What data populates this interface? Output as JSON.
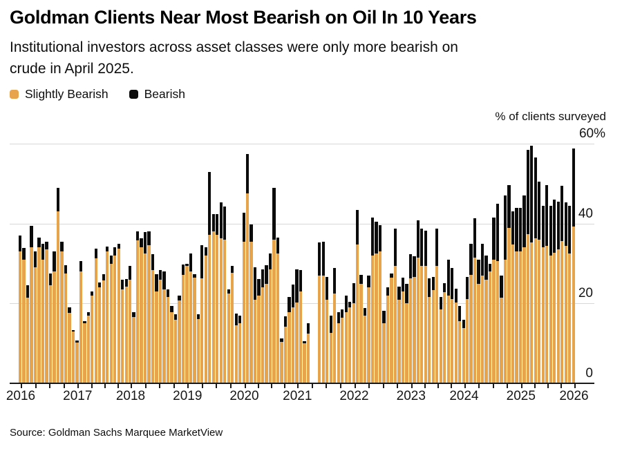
{
  "header": {
    "title": "Goldman Clients Near Most Bearish on Oil In 10 Years",
    "subtitle_line1": "Institutional investors across asset classes were only more bearish on",
    "subtitle_line2": "crude in April 2025."
  },
  "legend": {
    "items": [
      {
        "label": "Slightly Bearish",
        "color": "#E8A44A"
      },
      {
        "label": "Bearish",
        "color": "#0B0B0B"
      }
    ]
  },
  "footer": {
    "source": "Source: Goldman Sachs Marquee MarketView"
  },
  "chart_data": {
    "type": "bar",
    "stacked": true,
    "title": "Goldman Clients Near Most Bearish on Oil In 10 Years",
    "ylabel": "% of clients surveyed",
    "ylim": [
      0,
      64
    ],
    "gridlines": [
      20,
      40,
      60
    ],
    "y_ticks": [
      {
        "value": 60,
        "label": "60%"
      },
      {
        "value": 40,
        "label": "40"
      },
      {
        "value": 20,
        "label": "20"
      },
      {
        "value": 0,
        "label": "0"
      }
    ],
    "legend_position": "top-left",
    "x_years": [
      2016,
      2017,
      2018,
      2019,
      2020,
      2021,
      2022,
      2023,
      2024,
      2025,
      2026
    ],
    "year_start_index": {
      "2016": 0,
      "2017": 15,
      "2018": 29,
      "2019": 44,
      "2020": 59,
      "2021": 73,
      "2022": 88,
      "2023": 103,
      "2024": 117,
      "2025": 132,
      "2026": 146
    },
    "series_names": [
      "Slightly Bearish",
      "Bearish"
    ],
    "bars_note": "each bar = [slightly_bearish_pct, bearish_pct]; null = no survey (gap mid-2021)",
    "bars": [
      [
        33,
        4
      ],
      [
        31,
        3
      ],
      [
        21.5,
        3
      ],
      [
        34,
        5.5
      ],
      [
        29,
        4
      ],
      [
        34,
        2.5
      ],
      [
        31,
        4
      ],
      [
        33.5,
        2
      ],
      [
        24.5,
        3
      ],
      [
        28,
        5
      ],
      [
        43,
        6
      ],
      [
        33,
        2.5
      ],
      [
        27.5,
        2
      ],
      [
        17.6,
        1.4
      ],
      [
        12.9,
        0.5
      ],
      [
        10.2,
        0.6
      ],
      [
        28,
        2.6
      ],
      [
        15,
        0.6
      ],
      [
        17,
        0.9
      ],
      [
        22,
        1
      ],
      [
        31.4,
        2.3
      ],
      [
        24,
        1.3
      ],
      [
        25.7,
        1.7
      ],
      [
        33,
        1.2
      ],
      [
        30,
        2
      ],
      [
        32,
        2
      ],
      [
        33.7,
        1.2
      ],
      [
        23.6,
        2.3
      ],
      [
        24.2,
        2
      ],
      [
        25.9,
        3.5
      ],
      [
        16.7,
        1.2
      ],
      [
        35.8,
        2.3
      ],
      [
        34,
        2.3
      ],
      [
        32.6,
        5.2
      ],
      [
        34.6,
        3.5
      ],
      [
        28.3,
        4
      ],
      [
        23.1,
        4.3
      ],
      [
        25.9,
        2.4
      ],
      [
        23.6,
        4.4
      ],
      [
        21.6,
        2
      ],
      [
        17.9,
        1.4
      ],
      [
        15.9,
        1.4
      ],
      [
        20.8,
        1.1
      ],
      [
        27.1,
        2.6
      ],
      [
        29.4,
        0.6
      ],
      [
        28,
        4.6
      ],
      [
        26.5,
        0.9
      ],
      [
        16.1,
        1.2
      ],
      [
        26.3,
        8.3
      ],
      [
        32,
        2
      ],
      [
        37.2,
        15.7
      ],
      [
        38,
        4.3
      ],
      [
        37.2,
        5.2
      ],
      [
        36.3,
        9
      ],
      [
        36,
        8.3
      ],
      [
        22.5,
        1
      ],
      [
        27.7,
        1.7
      ],
      [
        14.5,
        3
      ],
      [
        15,
        2
      ],
      [
        35.5,
        7.2
      ],
      [
        47.5,
        10
      ],
      [
        35.5,
        4.3
      ],
      [
        21,
        8
      ],
      [
        22,
        4.2
      ],
      [
        24,
        4.5
      ],
      [
        25,
        4.6
      ],
      [
        28.5,
        4
      ],
      [
        36,
        13
      ],
      [
        32.5,
        4
      ],
      [
        10.4,
        0.8
      ],
      [
        14.2,
        2.6
      ],
      [
        17.9,
        3.7
      ],
      [
        19,
        5.8
      ],
      [
        20.2,
        8.3
      ],
      [
        23,
        5.4
      ],
      [
        10.1,
        0.5
      ],
      [
        12.4,
        2.6
      ],
      null,
      null,
      [
        27,
        8.3
      ],
      [
        27,
        8.4
      ],
      [
        21,
        5.6
      ],
      [
        12.7,
        4.3
      ],
      [
        22.5,
        6.4
      ],
      [
        15,
        2.9
      ],
      [
        16.5,
        2
      ],
      [
        17.8,
        4.2
      ],
      [
        19,
        1.5
      ],
      [
        20,
        5.1
      ],
      [
        34.7,
        8.7
      ],
      [
        25,
        2.2
      ],
      [
        17,
        1.8
      ],
      [
        24,
        3
      ],
      [
        32,
        9.6
      ],
      [
        32.5,
        8
      ],
      [
        33,
        6.6
      ],
      [
        15,
        3.2
      ],
      [
        22,
        2
      ],
      [
        26.5,
        1
      ],
      [
        29.5,
        9.2
      ],
      [
        21,
        3.3
      ],
      [
        23,
        3.4
      ],
      [
        20,
        5
      ],
      [
        26.3,
        6.1
      ],
      [
        26.6,
        5.2
      ],
      [
        31.5,
        9.3
      ],
      [
        29.5,
        9.2
      ],
      [
        29.5,
        8.7
      ],
      [
        21.7,
        4.6
      ],
      [
        23.4,
        3.2
      ],
      [
        29.5,
        9.2
      ],
      [
        18.5,
        3.2
      ],
      [
        22.8,
        2.3
      ],
      [
        22,
        8.9
      ],
      [
        21.1,
        7.8
      ],
      [
        20.2,
        3.5
      ],
      [
        15.6,
        3.8
      ],
      [
        13.9,
        2
      ],
      [
        21.1,
        5.5
      ],
      [
        27.2,
        7.8
      ],
      [
        31.5,
        9.8
      ],
      [
        25,
        6
      ],
      [
        27,
        8
      ],
      [
        26,
        6
      ],
      [
        28,
        2
      ],
      [
        31,
        10.5
      ],
      [
        30.6,
        14.4
      ],
      [
        21.5,
        5.5
      ],
      [
        31,
        16
      ],
      [
        39,
        10.7
      ],
      [
        34.7,
        8.3
      ],
      [
        33,
        11
      ],
      [
        33,
        11
      ],
      [
        34,
        13
      ],
      [
        37.3,
        21.1
      ],
      [
        35.3,
        24.2
      ],
      [
        36.3,
        20.3
      ],
      [
        36,
        14.6
      ],
      [
        34,
        10.5
      ],
      [
        34.4,
        15.3
      ],
      [
        32,
        12.5
      ],
      [
        32.7,
        13.3
      ],
      [
        33.5,
        12
      ],
      [
        35.6,
        13.8
      ],
      [
        34.4,
        11
      ],
      [
        32.5,
        12
      ],
      [
        39.3,
        19.5
      ]
    ]
  }
}
